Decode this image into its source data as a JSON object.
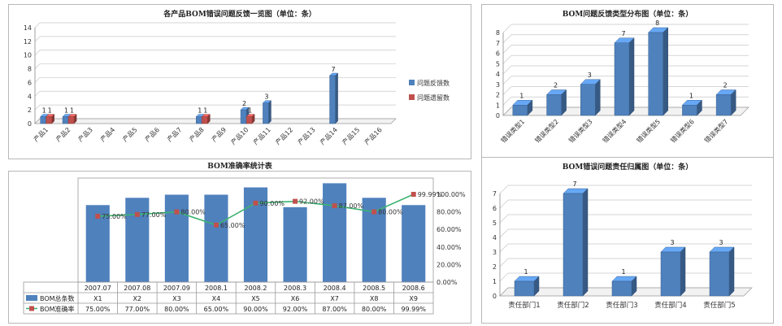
{
  "chart_data": [
    {
      "type": "bar",
      "title": "各产品BOM错误问题反馈一览图（单位：条）",
      "categories": [
        "产品1",
        "产品2",
        "产品3",
        "产品4",
        "产品5",
        "产品6",
        "产品7",
        "产品8",
        "产品9",
        "产品10",
        "产品11",
        "产品12",
        "产品13",
        "产品14",
        "产品15",
        "产品16"
      ],
      "series": [
        {
          "name": "问题反馈数",
          "color": "#4f81bd",
          "values": [
            1,
            1,
            0,
            0,
            0,
            0,
            0,
            1,
            0,
            2,
            3,
            0,
            0,
            7,
            0,
            0
          ]
        },
        {
          "name": "问题遗留数",
          "color": "#c0504d",
          "values": [
            1,
            1,
            0,
            0,
            0,
            0,
            0,
            1,
            0,
            1,
            0,
            0,
            0,
            0,
            0,
            0
          ]
        }
      ],
      "y_ticks": [
        "0",
        "2",
        "4",
        "6",
        "8",
        "10",
        "12",
        "14"
      ],
      "ylim": [
        0,
        14
      ],
      "legend": "right"
    },
    {
      "type": "bar",
      "title": "BOM问题反馈类型分布图（单位：条）",
      "categories": [
        "错误类型1",
        "错误类型2",
        "错误类型3",
        "错误类型4",
        "错误类型5",
        "错误类型6",
        "错误类型7"
      ],
      "values": [
        1,
        2,
        3,
        7,
        8,
        1,
        2
      ],
      "y_ticks": [
        "0",
        "1",
        "2",
        "3",
        "4",
        "5",
        "6",
        "7",
        "8"
      ],
      "ylim": [
        0,
        8
      ]
    },
    {
      "type": "bar",
      "title": "BOM准确率统计表",
      "categories": [
        "2007.07",
        "2007.08",
        "2007.09",
        "2008.1",
        "2008.2",
        "2008.3",
        "2008.4",
        "2008.5",
        "2008.6"
      ],
      "series": [
        {
          "name": "BOM总条数",
          "color": "#4f81bd",
          "values": [
            "X1",
            "X2",
            "X3",
            "X4",
            "X5",
            "X6",
            "X7",
            "X8",
            "X9"
          ]
        },
        {
          "name": "BOM准确率",
          "color": "#c0504d",
          "line_color": "#3cb371",
          "values": [
            75,
            77,
            80,
            65,
            90,
            92,
            87,
            80,
            99.99
          ]
        }
      ],
      "point_labels": [
        "75.00%",
        "77.00%",
        "80.00%",
        "65.00%",
        "90.00%",
        "92.00%",
        "87.00%",
        "80.00%",
        "99.99%"
      ],
      "table_rate_labels": [
        "75.00%",
        "77.00%",
        "80.00%",
        "65.00%",
        "90.00%",
        "92.00%",
        "87.00%",
        "80.00%",
        "99.99%"
      ],
      "bar_relative_heights": [
        0.74,
        0.81,
        0.84,
        0.84,
        0.91,
        0.72,
        0.95,
        0.81,
        0.74
      ],
      "y2_ticks": [
        "0.00%",
        "20.00%",
        "40.00%",
        "60.00%",
        "80.00%",
        "100.00%"
      ],
      "y2lim": [
        0,
        100
      ]
    },
    {
      "type": "bar",
      "title": "BOM错误问题责任归属图（单位：条）",
      "categories": [
        "责任部门1",
        "责任部门2",
        "责任部门3",
        "责任部门4",
        "责任部门5"
      ],
      "values": [
        1,
        7,
        1,
        3,
        3
      ],
      "y_ticks": [
        "0",
        "1",
        "2",
        "3",
        "4",
        "5",
        "6",
        "7"
      ],
      "ylim": [
        0,
        7
      ]
    }
  ]
}
